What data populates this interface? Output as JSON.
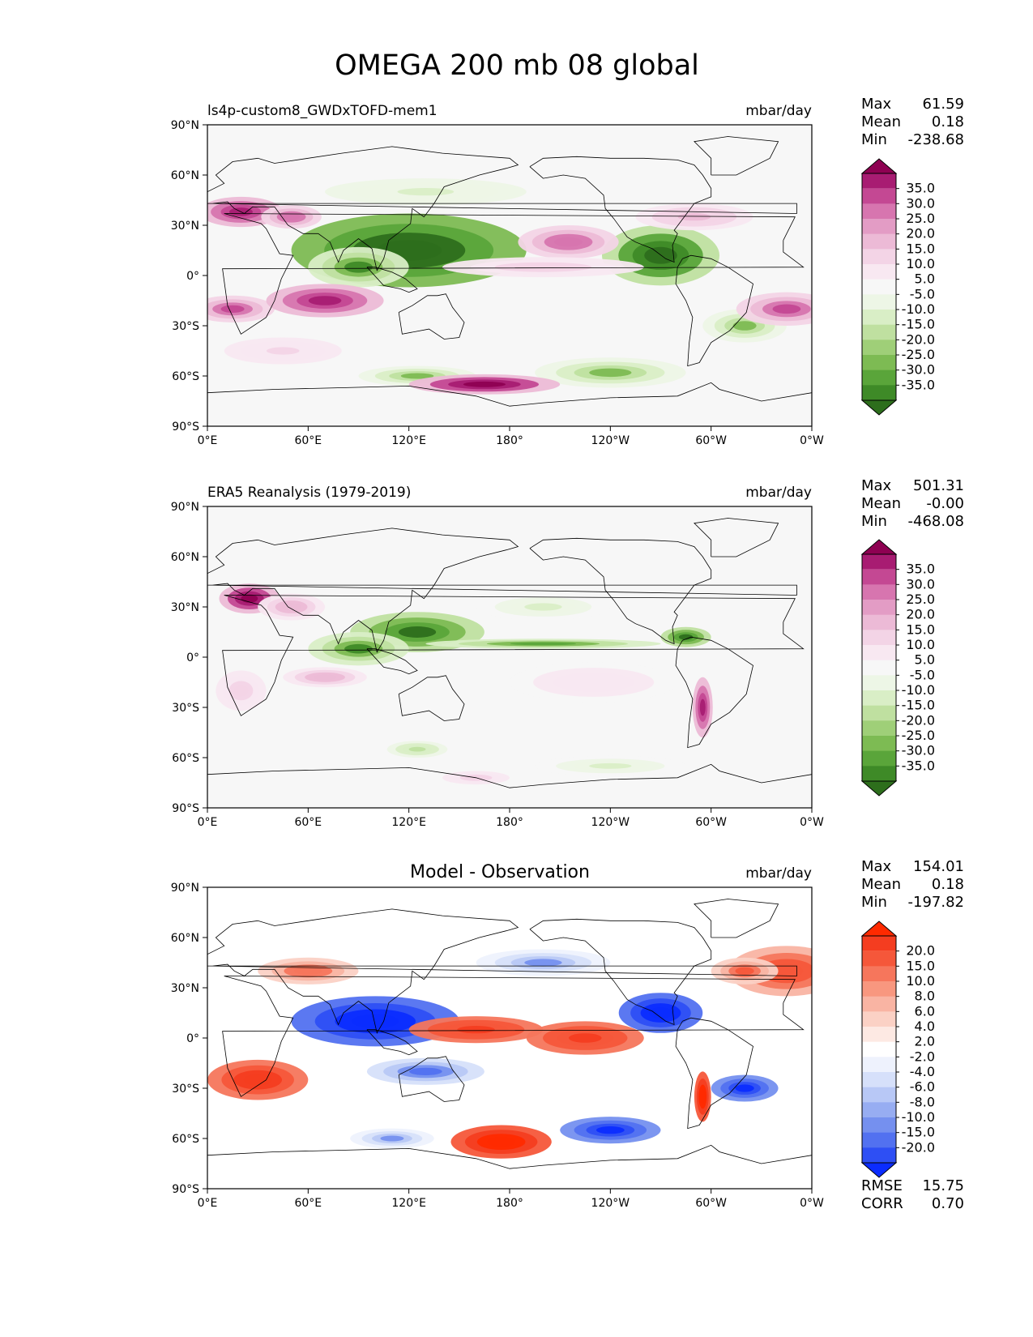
{
  "title": "OMEGA 200 mb 08 global",
  "units": "mbar/day",
  "x_tick_labels": [
    "0°E",
    "60°E",
    "120°E",
    "180°",
    "120°W",
    "60°W",
    "0°W"
  ],
  "y_tick_labels": [
    "90°N",
    "60°N",
    "30°N",
    "0°",
    "30°S",
    "60°S",
    "90°S"
  ],
  "stat_labels": {
    "max": "Max",
    "mean": "Mean",
    "min": "Min",
    "rmse": "RMSE",
    "corr": "CORR"
  },
  "colors": {
    "prgn": [
      "#2d6e1c",
      "#3e8a27",
      "#5aa53a",
      "#7dbb53",
      "#9fcf78",
      "#bfe0a0",
      "#d9eec6",
      "#edf6e6",
      "#f7f7f7",
      "#f8e8f1",
      "#f3d4e6",
      "#ecbad6",
      "#e39cc5",
      "#d775af",
      "#c44893",
      "#a81c72",
      "#8e0152"
    ],
    "bwr": [
      "#0b2cff",
      "#2e4ff4",
      "#5271f0",
      "#7590ef",
      "#97adf2",
      "#b8c8f6",
      "#d6e0fa",
      "#eef2fd",
      "#ffffff",
      "#fde9e3",
      "#fbd1c5",
      "#f9b4a3",
      "#f8977f",
      "#f6765c",
      "#f5573a",
      "#f43d20",
      "#ff2a00"
    ]
  },
  "chart_data": [
    {
      "type": "heatmap",
      "panel": "model",
      "title_left": "ls4p-custom8_GWDxTOFD-mem1",
      "title_center": "",
      "units": "mbar/day",
      "xlim": [
        0,
        360
      ],
      "ylim": [
        -90,
        90
      ],
      "xticks": [
        0,
        60,
        120,
        180,
        240,
        300,
        360
      ],
      "yticks": [
        90,
        60,
        30,
        0,
        -30,
        -60,
        -90
      ],
      "stats": {
        "max": "61.59",
        "mean": "0.18",
        "min": "-238.68"
      },
      "colorbar_levels": [
        "35.0",
        "30.0",
        "25.0",
        "20.0",
        "15.0",
        "10.0",
        "5.0",
        "-5.0",
        "-10.0",
        "-15.0",
        "-20.0",
        "-25.0",
        "-30.0",
        "-35.0"
      ],
      "colormap": "prgn",
      "features": [
        {
          "lon": 120,
          "lat": 15,
          "w": 70,
          "h": 22,
          "v": -45
        },
        {
          "lon": 90,
          "lat": 5,
          "w": 30,
          "h": 12,
          "v": -30
        },
        {
          "lon": 270,
          "lat": 12,
          "w": 35,
          "h": 18,
          "v": -40
        },
        {
          "lon": 125,
          "lat": -60,
          "w": 35,
          "h": 6,
          "v": -20
        },
        {
          "lon": 240,
          "lat": -58,
          "w": 45,
          "h": 9,
          "v": -20
        },
        {
          "lon": 320,
          "lat": -30,
          "w": 25,
          "h": 10,
          "v": -20
        },
        {
          "lon": 130,
          "lat": 50,
          "w": 60,
          "h": 8,
          "v": -12
        },
        {
          "lon": 20,
          "lat": 38,
          "w": 25,
          "h": 9,
          "v": 35
        },
        {
          "lon": 50,
          "lat": 35,
          "w": 18,
          "h": 7,
          "v": 25
        },
        {
          "lon": 15,
          "lat": -20,
          "w": 25,
          "h": 8,
          "v": 30
        },
        {
          "lon": 70,
          "lat": -15,
          "w": 35,
          "h": 10,
          "v": 35
        },
        {
          "lon": 165,
          "lat": -65,
          "w": 45,
          "h": 6,
          "v": 40
        },
        {
          "lon": 215,
          "lat": 20,
          "w": 30,
          "h": 10,
          "v": 25
        },
        {
          "lon": 345,
          "lat": -20,
          "w": 30,
          "h": 10,
          "v": 30
        },
        {
          "lon": 290,
          "lat": 35,
          "w": 35,
          "h": 8,
          "v": 18
        },
        {
          "lon": 200,
          "lat": 5,
          "w": 60,
          "h": 6,
          "v": 15
        },
        {
          "lon": 45,
          "lat": -45,
          "w": 35,
          "h": 8,
          "v": 12
        }
      ]
    },
    {
      "type": "heatmap",
      "panel": "observation",
      "title_left": "ERA5 Reanalysis (1979-2019)",
      "title_center": "",
      "units": "mbar/day",
      "xlim": [
        0,
        360
      ],
      "ylim": [
        -90,
        90
      ],
      "xticks": [
        0,
        60,
        120,
        180,
        240,
        300,
        360
      ],
      "yticks": [
        90,
        60,
        30,
        0,
        -30,
        -60,
        -90
      ],
      "stats": {
        "max": "501.31",
        "mean": "-0.00",
        "min": "-468.08"
      },
      "colorbar_levels": [
        "35.0",
        "30.0",
        "25.0",
        "20.0",
        "15.0",
        "10.0",
        "5.0",
        "-5.0",
        "-10.0",
        "-15.0",
        "-20.0",
        "-25.0",
        "-30.0",
        "-35.0"
      ],
      "colormap": "prgn",
      "features": [
        {
          "lon": 25,
          "lat": 35,
          "w": 18,
          "h": 9,
          "v": 40
        },
        {
          "lon": 50,
          "lat": 30,
          "w": 20,
          "h": 8,
          "v": 20
        },
        {
          "lon": 125,
          "lat": 15,
          "w": 40,
          "h": 12,
          "v": -35
        },
        {
          "lon": 90,
          "lat": 5,
          "w": 30,
          "h": 10,
          "v": -30
        },
        {
          "lon": 200,
          "lat": 8,
          "w": 70,
          "h": 3,
          "v": -25
        },
        {
          "lon": 285,
          "lat": 12,
          "w": 15,
          "h": 6,
          "v": -35
        },
        {
          "lon": 295,
          "lat": -30,
          "w": 6,
          "h": 18,
          "v": 35
        },
        {
          "lon": 125,
          "lat": -55,
          "w": 18,
          "h": 5,
          "v": -18
        },
        {
          "lon": 70,
          "lat": -12,
          "w": 25,
          "h": 6,
          "v": 20
        },
        {
          "lon": 20,
          "lat": -20,
          "w": 15,
          "h": 12,
          "v": 15
        },
        {
          "lon": 230,
          "lat": -15,
          "w": 50,
          "h": 12,
          "v": 10
        },
        {
          "lon": 160,
          "lat": -72,
          "w": 20,
          "h": 4,
          "v": 15
        },
        {
          "lon": 240,
          "lat": -65,
          "w": 45,
          "h": 6,
          "v": -10
        },
        {
          "lon": 200,
          "lat": 30,
          "w": 40,
          "h": 8,
          "v": -10
        }
      ]
    },
    {
      "type": "heatmap",
      "panel": "difference",
      "title_left": "",
      "title_center": "Model - Observation",
      "units": "mbar/day",
      "xlim": [
        0,
        360
      ],
      "ylim": [
        -90,
        90
      ],
      "xticks": [
        0,
        60,
        120,
        180,
        240,
        300,
        360
      ],
      "yticks": [
        90,
        60,
        30,
        0,
        -30,
        -60,
        -90
      ],
      "stats": {
        "max": "154.01",
        "mean": "0.18",
        "min": "-197.82",
        "rmse": "15.75",
        "corr": "0.70"
      },
      "colorbar_levels": [
        "20.0",
        "15.0",
        "10.0",
        "8.0",
        "6.0",
        "4.0",
        "2.0",
        "-2.0",
        "-4.0",
        "-6.0",
        "-8.0",
        "-10.0",
        "-15.0",
        "-20.0"
      ],
      "colormap": "bwr",
      "features": [
        {
          "lon": 100,
          "lat": 10,
          "w": 50,
          "h": 15,
          "v": -25
        },
        {
          "lon": 270,
          "lat": 15,
          "w": 25,
          "h": 12,
          "v": -25
        },
        {
          "lon": 160,
          "lat": 5,
          "w": 40,
          "h": 8,
          "v": 18
        },
        {
          "lon": 225,
          "lat": 0,
          "w": 35,
          "h": 10,
          "v": 18
        },
        {
          "lon": 30,
          "lat": -25,
          "w": 30,
          "h": 12,
          "v": 20
        },
        {
          "lon": 175,
          "lat": -62,
          "w": 30,
          "h": 10,
          "v": 25
        },
        {
          "lon": 240,
          "lat": -55,
          "w": 30,
          "h": 8,
          "v": -20
        },
        {
          "lon": 320,
          "lat": -30,
          "w": 20,
          "h": 8,
          "v": -20
        },
        {
          "lon": 295,
          "lat": -35,
          "w": 5,
          "h": 15,
          "v": 25
        },
        {
          "lon": 345,
          "lat": 40,
          "w": 35,
          "h": 15,
          "v": 15
        },
        {
          "lon": 200,
          "lat": 45,
          "w": 40,
          "h": 8,
          "v": -8
        },
        {
          "lon": 320,
          "lat": 40,
          "w": 20,
          "h": 8,
          "v": 12
        },
        {
          "lon": 60,
          "lat": 40,
          "w": 30,
          "h": 8,
          "v": 10
        },
        {
          "lon": 130,
          "lat": -20,
          "w": 35,
          "h": 8,
          "v": -10
        },
        {
          "lon": 110,
          "lat": -60,
          "w": 25,
          "h": 6,
          "v": -8
        }
      ]
    }
  ]
}
